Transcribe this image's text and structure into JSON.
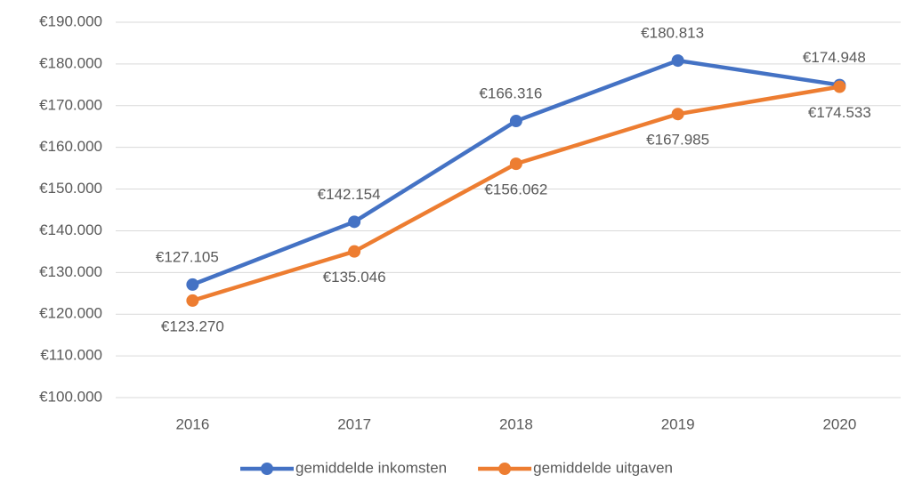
{
  "chart_data": {
    "type": "line",
    "categories": [
      "2016",
      "2017",
      "2018",
      "2019",
      "2020"
    ],
    "series": [
      {
        "name": "gemiddelde inkomsten",
        "color": "#4472c4",
        "values": [
          127105,
          142154,
          166316,
          180813,
          174948
        ],
        "value_labels": [
          "€127.105",
          "€142.154",
          "€166.316",
          "€180.813",
          "€174.948"
        ]
      },
      {
        "name": "gemiddelde uitgaven",
        "color": "#ed7d31",
        "values": [
          123270,
          135046,
          156062,
          167985,
          174533
        ],
        "value_labels": [
          "€123.270",
          "€135.046",
          "€156.062",
          "€167.985",
          "€174.533"
        ]
      }
    ],
    "ylim": [
      100000,
      190000
    ],
    "yticks": [
      {
        "value": 100000,
        "label": "€100.000"
      },
      {
        "value": 110000,
        "label": "€110.000"
      },
      {
        "value": 120000,
        "label": "€120.000"
      },
      {
        "value": 130000,
        "label": "€130.000"
      },
      {
        "value": 140000,
        "label": "€140.000"
      },
      {
        "value": 150000,
        "label": "€150.000"
      },
      {
        "value": 160000,
        "label": "€160.000"
      },
      {
        "value": 170000,
        "label": "€170.000"
      },
      {
        "value": 180000,
        "label": "€180.000"
      },
      {
        "value": 190000,
        "label": "€190.000"
      }
    ],
    "grid": true,
    "legend": "bottom"
  }
}
